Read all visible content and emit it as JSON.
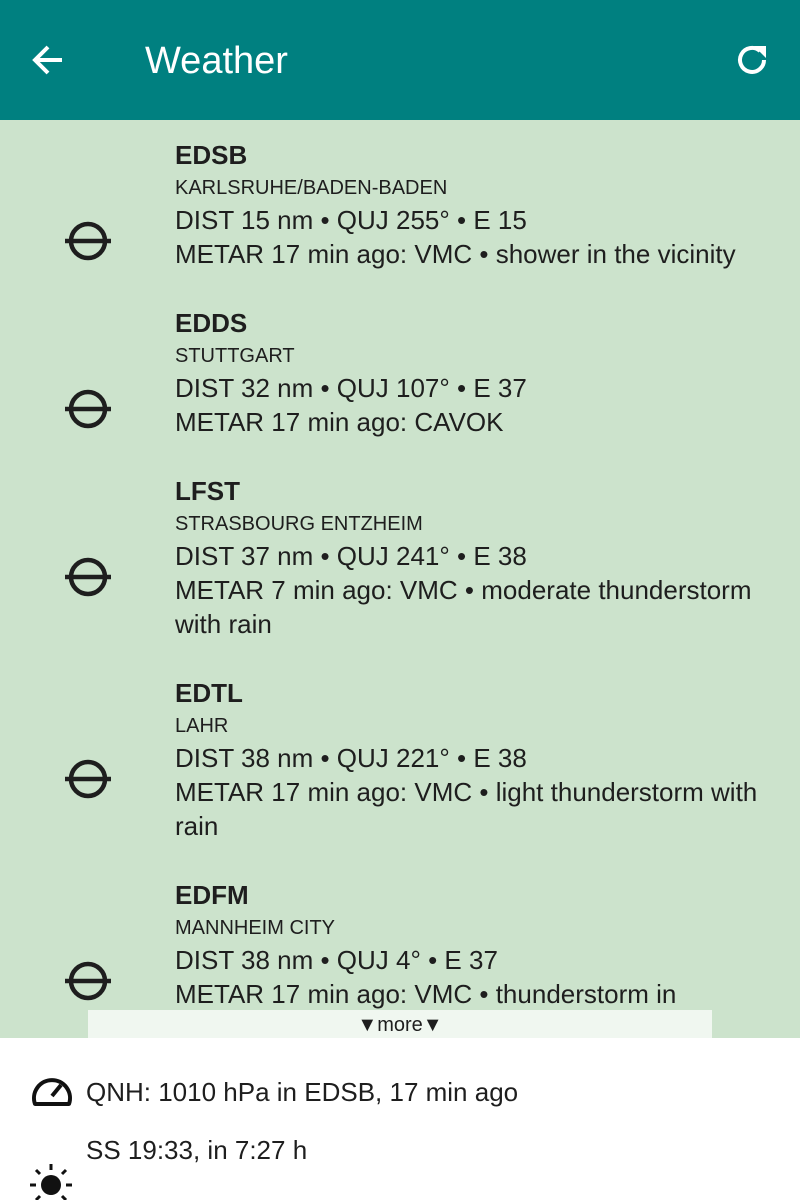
{
  "header": {
    "title": "Weather"
  },
  "stations": [
    {
      "code": "EDSB",
      "name": "KARLSRUHE/BADEN-BADEN",
      "dist": "DIST 15 nm • QUJ 255° • E 15",
      "metar": "METAR 17 min ago: VMC • shower in the vicinity"
    },
    {
      "code": "EDDS",
      "name": "STUTTGART",
      "dist": "DIST 32 nm • QUJ 107° • E 37",
      "metar": "METAR 17 min ago: CAVOK"
    },
    {
      "code": "LFST",
      "name": "STRASBOURG ENTZHEIM",
      "dist": "DIST 37 nm • QUJ 241° • E 38",
      "metar": "METAR 7 min ago: VMC • moderate thunderstorm with rain"
    },
    {
      "code": "EDTL",
      "name": "LAHR",
      "dist": "DIST 38 nm • QUJ 221° • E 38",
      "metar": "METAR 17 min ago: VMC • light thunderstorm with rain"
    },
    {
      "code": "EDFM",
      "name": "MANNHEIM CITY",
      "dist": "DIST 38 nm • QUJ 4° • E 37",
      "metar": "METAR 17 min ago: VMC • thunderstorm in"
    }
  ],
  "more": "▼more▼",
  "footer": {
    "qnh": "QNH: 1010 hPa in EDSB, 17 min ago",
    "sunset": "SS 19:33, in 7:27 h"
  }
}
